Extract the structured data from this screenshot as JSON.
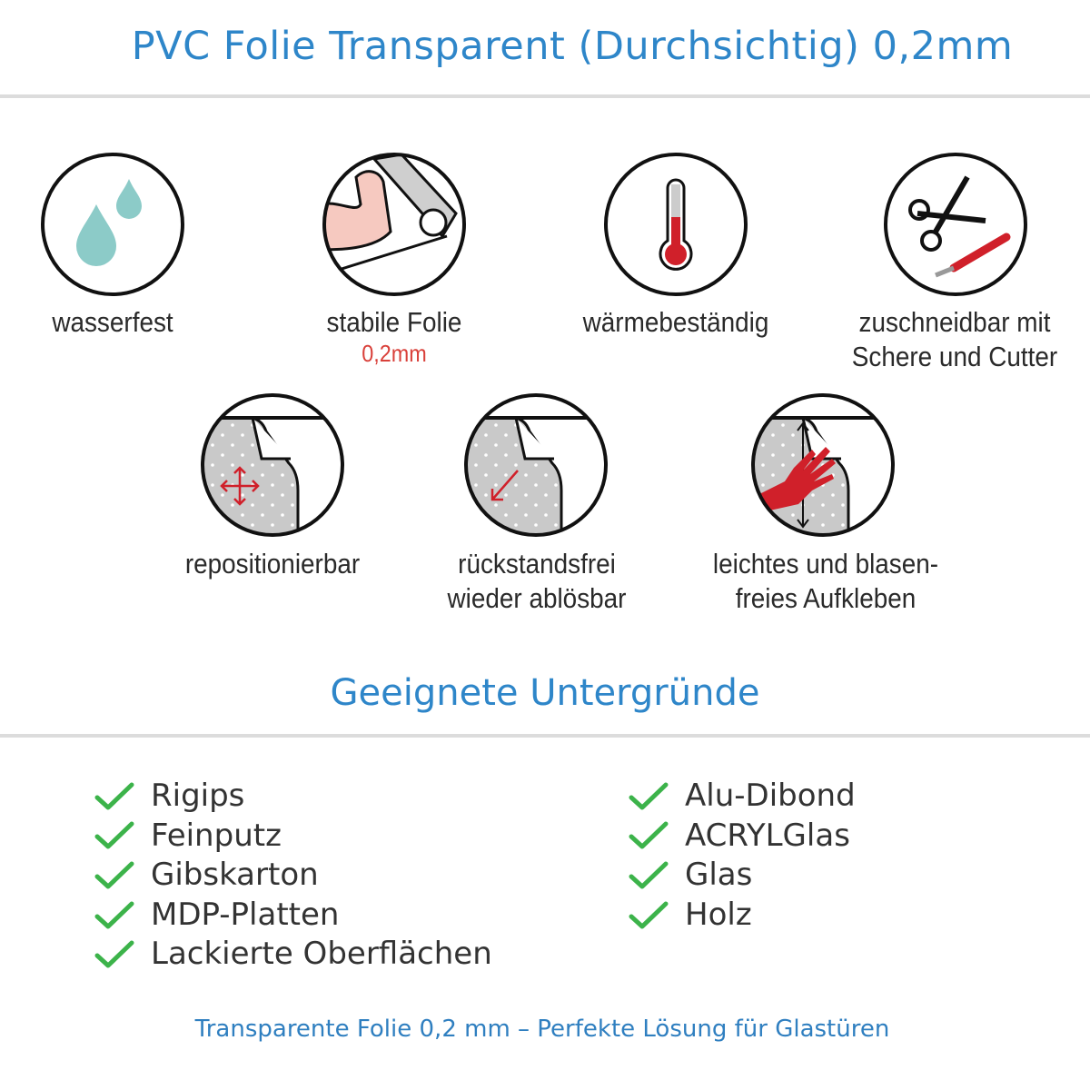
{
  "header": {
    "title": "PVC Folie Transparent (Durchsichtig) 0,2mm"
  },
  "features": [
    {
      "icon": "water-drops-icon",
      "label": "wasserfest"
    },
    {
      "icon": "strong-arm-roll-icon",
      "label": "stabile Folie",
      "sub": "0,2mm"
    },
    {
      "icon": "thermometer-icon",
      "label": "wärmebeständig"
    },
    {
      "icon": "scissors-cutter-icon",
      "label": "zuschneidbar mit",
      "label2": "Schere und Cutter"
    },
    {
      "icon": "reposition-arrows-icon",
      "label": "repositionierbar"
    },
    {
      "icon": "peel-arrow-icon",
      "label": "rückstandsfrei",
      "label2": "wieder ablösbar"
    },
    {
      "icon": "hand-smooth-icon",
      "label": "leichtes und blasen-",
      "label2": "freies Aufkleben"
    }
  ],
  "surfaces": {
    "title": "Geeignete Untergründe",
    "left": [
      "Rigips",
      "Feinputz",
      "Gibskarton",
      "MDP-Platten",
      "Lackierte Oberflächen"
    ],
    "right": [
      "Alu-Dibond",
      "ACRYLGlas",
      "Glas",
      "Holz"
    ]
  },
  "footer": {
    "text": "Transparente Folie 0,2 mm – Perfekte Lösung für Glastüren"
  },
  "colors": {
    "blue": "#2e86c9",
    "red": "#d0202a",
    "check": "#3cb34a",
    "drop": "#8ccbc8"
  }
}
